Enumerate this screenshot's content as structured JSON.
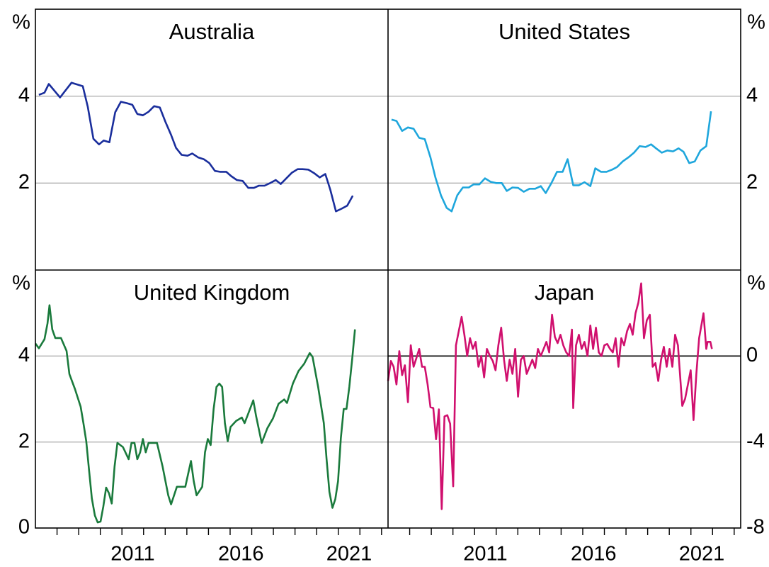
{
  "chart_data": [
    {
      "type": "line",
      "title": "Australia",
      "color": "#1a2e9c",
      "y_unit": "%",
      "yaxis_side": "left",
      "xlim": [
        2007,
        2023.3
      ],
      "xticks": [
        2011,
        2016,
        2021
      ],
      "ylim": [
        0,
        6
      ],
      "yticks": [
        2,
        4
      ],
      "grid": true,
      "x": [
        2007.16,
        2007.42,
        2007.62,
        2008.14,
        2008.67,
        2009.19,
        2009.42,
        2009.68,
        2009.94,
        2010.16,
        2010.42,
        2010.69,
        2010.95,
        2011.22,
        2011.48,
        2011.71,
        2011.97,
        2012.23,
        2012.49,
        2012.75,
        2013.01,
        2013.27,
        2013.5,
        2013.76,
        2014.03,
        2014.25,
        2014.52,
        2014.78,
        2015.04,
        2015.3,
        2015.53,
        2015.82,
        2016.05,
        2016.31,
        2016.58,
        2016.84,
        2017.1,
        2017.33,
        2017.59,
        2017.85,
        2018.11,
        2018.34,
        2018.6,
        2018.86,
        2019.12,
        2019.35,
        2019.61,
        2019.88,
        2020.14,
        2020.4,
        2020.63,
        2020.89,
        2021.15,
        2021.41,
        2021.67
      ],
      "values": [
        4.03,
        4.08,
        4.28,
        3.97,
        4.31,
        4.23,
        3.76,
        3.02,
        2.89,
        2.98,
        2.94,
        3.63,
        3.87,
        3.84,
        3.8,
        3.59,
        3.56,
        3.64,
        3.77,
        3.74,
        3.41,
        3.11,
        2.81,
        2.65,
        2.63,
        2.68,
        2.59,
        2.55,
        2.46,
        2.28,
        2.26,
        2.26,
        2.16,
        2.07,
        2.05,
        1.89,
        1.89,
        1.94,
        1.94,
        2.0,
        2.07,
        1.98,
        2.11,
        2.24,
        2.32,
        2.32,
        2.31,
        2.23,
        2.13,
        2.21,
        1.85,
        1.35,
        1.41,
        1.48,
        1.71
      ]
    },
    {
      "type": "line",
      "title": "United States",
      "color": "#1ea6dc",
      "y_unit": "%",
      "yaxis_side": "right",
      "xlim": [
        2007,
        2023.3
      ],
      "xticks": [
        2011,
        2016,
        2021
      ],
      "ylim": [
        0,
        6
      ],
      "yticks": [
        2,
        4
      ],
      "grid": true,
      "x": [
        2007.16,
        2007.39,
        2007.65,
        2007.92,
        2008.18,
        2008.44,
        2008.7,
        2008.96,
        2009.19,
        2009.45,
        2009.71,
        2009.94,
        2010.2,
        2010.46,
        2010.73,
        2010.95,
        2011.22,
        2011.48,
        2011.74,
        2012.0,
        2012.26,
        2012.49,
        2012.75,
        2013.01,
        2013.27,
        2013.54,
        2013.8,
        2014.06,
        2014.29,
        2014.55,
        2014.81,
        2015.07,
        2015.3,
        2015.56,
        2015.82,
        2016.08,
        2016.35,
        2016.58,
        2016.84,
        2017.1,
        2017.36,
        2017.59,
        2017.85,
        2018.11,
        2018.37,
        2018.63,
        2018.9,
        2019.16,
        2019.39,
        2019.65,
        2019.91,
        2020.17,
        2020.43,
        2020.66,
        2020.92,
        2021.18,
        2021.44,
        2021.71,
        2021.93
      ],
      "values": [
        3.46,
        3.43,
        3.2,
        3.28,
        3.25,
        3.04,
        3.01,
        2.59,
        2.13,
        1.71,
        1.43,
        1.35,
        1.72,
        1.9,
        1.9,
        1.97,
        1.97,
        2.11,
        2.03,
        2.0,
        2.0,
        1.82,
        1.9,
        1.89,
        1.8,
        1.87,
        1.87,
        1.93,
        1.77,
        2.0,
        2.26,
        2.26,
        2.55,
        1.95,
        1.95,
        2.02,
        1.93,
        2.34,
        2.26,
        2.26,
        2.31,
        2.37,
        2.5,
        2.59,
        2.7,
        2.85,
        2.83,
        2.89,
        2.8,
        2.7,
        2.75,
        2.73,
        2.8,
        2.72,
        2.46,
        2.5,
        2.75,
        2.85,
        3.65
      ]
    },
    {
      "type": "line",
      "title": "United Kingdom",
      "color": "#1a7a3c",
      "y_unit": "%",
      "yaxis_side": "left",
      "xlim": [
        2007,
        2023.3
      ],
      "xticks": [
        2011,
        2016,
        2021
      ],
      "xminorticks": [
        2008,
        2009,
        2010,
        2011,
        2012,
        2013,
        2014,
        2015,
        2016,
        2017,
        2018,
        2019,
        2020,
        2021,
        2022,
        2023
      ],
      "ylim": [
        0,
        6
      ],
      "yticks": [
        0,
        2,
        4
      ],
      "grid": true,
      "x": [
        2007.0,
        2007.16,
        2007.42,
        2007.56,
        2007.65,
        2007.78,
        2007.92,
        2008.18,
        2008.44,
        2008.57,
        2008.83,
        2009.09,
        2009.22,
        2009.35,
        2009.48,
        2009.61,
        2009.75,
        2009.88,
        2010.01,
        2010.14,
        2010.27,
        2010.4,
        2010.53,
        2010.66,
        2010.79,
        2011.05,
        2011.31,
        2011.44,
        2011.58,
        2011.71,
        2011.84,
        2011.97,
        2012.1,
        2012.23,
        2012.62,
        2012.88,
        2013.14,
        2013.27,
        2013.54,
        2013.93,
        2014.19,
        2014.32,
        2014.45,
        2014.71,
        2014.84,
        2014.97,
        2015.1,
        2015.24,
        2015.37,
        2015.5,
        2015.63,
        2015.76,
        2015.89,
        2016.02,
        2016.28,
        2016.54,
        2016.67,
        2016.8,
        2017.07,
        2017.2,
        2017.46,
        2017.72,
        2017.98,
        2018.24,
        2018.5,
        2018.63,
        2018.9,
        2019.16,
        2019.42,
        2019.68,
        2019.81,
        2020.07,
        2020.33,
        2020.46,
        2020.59,
        2020.73,
        2020.86,
        2020.99,
        2021.12,
        2021.25,
        2021.38,
        2021.51,
        2021.64,
        2021.77
      ],
      "values": [
        4.29,
        4.18,
        4.39,
        4.76,
        5.18,
        4.62,
        4.42,
        4.42,
        4.12,
        3.58,
        3.23,
        2.82,
        2.44,
        2.02,
        1.34,
        0.69,
        0.29,
        0.13,
        0.15,
        0.5,
        0.94,
        0.81,
        0.57,
        1.43,
        1.98,
        1.88,
        1.6,
        1.98,
        1.98,
        1.6,
        1.76,
        2.07,
        1.76,
        1.98,
        1.98,
        1.43,
        0.76,
        0.55,
        0.96,
        0.96,
        1.56,
        1.09,
        0.76,
        0.96,
        1.76,
        2.07,
        1.93,
        2.77,
        3.28,
        3.36,
        3.28,
        2.44,
        2.02,
        2.35,
        2.49,
        2.57,
        2.44,
        2.61,
        2.97,
        2.61,
        1.98,
        2.32,
        2.55,
        2.89,
        2.99,
        2.91,
        3.36,
        3.65,
        3.82,
        4.07,
        3.98,
        3.28,
        2.44,
        1.6,
        0.84,
        0.47,
        0.67,
        1.09,
        2.1,
        2.77,
        2.77,
        3.28,
        3.92,
        4.62
      ]
    },
    {
      "type": "line",
      "title": "Japan",
      "color": "#d0106e",
      "y_unit": "%",
      "yaxis_side": "right",
      "zero_line": true,
      "xlim": [
        2007,
        2023.3
      ],
      "xticks": [
        2011,
        2016,
        2021
      ],
      "xminorticks": [
        2008,
        2009,
        2010,
        2011,
        2012,
        2013,
        2014,
        2015,
        2016,
        2017,
        2018,
        2019,
        2020,
        2021,
        2022,
        2023
      ],
      "ylim": [
        -8,
        4
      ],
      "yticks": [
        -8,
        -4,
        0
      ],
      "grid": true,
      "x": [
        2007.0,
        2007.13,
        2007.26,
        2007.39,
        2007.52,
        2007.65,
        2007.78,
        2007.92,
        2008.05,
        2008.18,
        2008.31,
        2008.44,
        2008.57,
        2008.7,
        2008.83,
        2008.96,
        2009.09,
        2009.22,
        2009.35,
        2009.48,
        2009.61,
        2009.74,
        2009.87,
        2010.01,
        2010.14,
        2010.27,
        2010.4,
        2010.53,
        2010.66,
        2010.79,
        2010.92,
        2011.05,
        2011.18,
        2011.31,
        2011.44,
        2011.57,
        2011.71,
        2011.84,
        2011.97,
        2012.1,
        2012.23,
        2012.36,
        2012.49,
        2012.62,
        2012.75,
        2012.88,
        2013.01,
        2013.14,
        2013.27,
        2013.41,
        2013.54,
        2013.67,
        2013.8,
        2013.93,
        2014.06,
        2014.19,
        2014.32,
        2014.45,
        2014.58,
        2014.71,
        2014.84,
        2014.97,
        2015.1,
        2015.24,
        2015.37,
        2015.5,
        2015.56,
        2015.69,
        2015.82,
        2015.95,
        2016.08,
        2016.22,
        2016.35,
        2016.48,
        2016.61,
        2016.74,
        2016.87,
        2017.0,
        2017.13,
        2017.26,
        2017.39,
        2017.52,
        2017.65,
        2017.78,
        2017.91,
        2018.05,
        2018.18,
        2018.31,
        2018.44,
        2018.57,
        2018.7,
        2018.83,
        2018.96,
        2019.1,
        2019.23,
        2019.36,
        2019.49,
        2019.62,
        2019.75,
        2019.88,
        2020.01,
        2020.14,
        2020.27,
        2020.4,
        2020.6,
        2020.73,
        2020.86,
        2020.99,
        2021.12,
        2021.25,
        2021.38,
        2021.58,
        2021.71,
        2021.77,
        2021.9,
        2021.97
      ],
      "values": [
        -1.16,
        -0.23,
        -0.5,
        -1.32,
        0.23,
        -0.89,
        -0.43,
        -2.15,
        0.5,
        -0.5,
        -0.1,
        0.33,
        -0.5,
        -0.5,
        -1.32,
        -2.38,
        -2.42,
        -3.87,
        -2.48,
        -7.12,
        -2.81,
        -2.75,
        -3.15,
        -6.06,
        0.5,
        1.16,
        1.82,
        0.99,
        0.0,
        0.83,
        0.33,
        0.66,
        -0.5,
        0.0,
        -0.99,
        0.33,
        0.0,
        -0.23,
        -0.66,
        0.5,
        1.32,
        -0.17,
        -1.16,
        -0.17,
        -0.83,
        0.33,
        -1.89,
        -0.17,
        0.0,
        -0.83,
        -0.5,
        -0.17,
        -0.56,
        0.33,
        0.0,
        0.33,
        0.66,
        0.17,
        1.92,
        0.89,
        0.6,
        0.99,
        0.5,
        0.17,
        0.0,
        1.23,
        -2.42,
        0.5,
        0.99,
        0.33,
        0.66,
        0.0,
        1.42,
        0.33,
        1.32,
        0.17,
        0.0,
        0.5,
        0.56,
        0.33,
        0.17,
        0.83,
        -0.5,
        0.83,
        0.5,
        1.16,
        1.49,
        0.99,
        1.99,
        2.48,
        3.38,
        0.83,
        1.66,
        1.92,
        -0.5,
        -0.33,
        -1.16,
        -0.17,
        0.43,
        -0.5,
        0.33,
        -0.5,
        0.99,
        0.5,
        -2.32,
        -1.99,
        -1.32,
        -0.66,
        -2.98,
        -0.83,
        0.83,
        1.99,
        0.33,
        0.66,
        0.66,
        0.33
      ]
    }
  ]
}
